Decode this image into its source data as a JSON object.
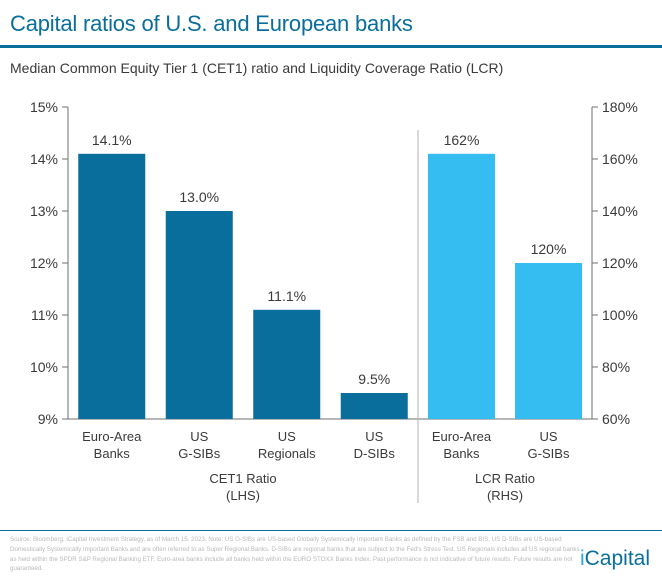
{
  "header": {
    "title": "Capital ratios of U.S. and European banks",
    "subtitle": "Median Common Equity Tier 1 (CET1) ratio and Liquidity Coverage Ratio (LCR)"
  },
  "chart_data": {
    "type": "bar",
    "left_axis": {
      "ylim": [
        9,
        15
      ],
      "ticks": [
        9,
        10,
        11,
        12,
        13,
        14,
        15
      ],
      "tick_labels": [
        "9%",
        "10%",
        "11%",
        "12%",
        "13%",
        "14%",
        "15%"
      ]
    },
    "right_axis": {
      "ylim": [
        60,
        180
      ],
      "ticks": [
        60,
        80,
        100,
        120,
        140,
        160,
        180
      ],
      "tick_labels": [
        "60%",
        "80%",
        "100%",
        "120%",
        "140%",
        "160%",
        "180%"
      ]
    },
    "groups": [
      {
        "label": [
          "CET1 Ratio",
          "(LHS)"
        ],
        "axis": "left",
        "color": "#0a6e9c",
        "bars": [
          {
            "category": [
              "Euro-Area",
              "Banks"
            ],
            "value": 14.1,
            "label": "14.1%"
          },
          {
            "category": [
              "US",
              "G-SIBs"
            ],
            "value": 13.0,
            "label": "13.0%"
          },
          {
            "category": [
              "US",
              "Regionals"
            ],
            "value": 11.1,
            "label": "11.1%"
          },
          {
            "category": [
              "US",
              "D-SIBs"
            ],
            "value": 9.5,
            "label": "9.5%"
          }
        ]
      },
      {
        "label": [
          "LCR Ratio",
          "(RHS)"
        ],
        "axis": "right",
        "color": "#35bdf2",
        "bars": [
          {
            "category": [
              "Euro-Area",
              "Banks"
            ],
            "value": 162,
            "label": "162%"
          },
          {
            "category": [
              "US",
              "G-SIBs"
            ],
            "value": 120,
            "label": "120%"
          }
        ]
      }
    ],
    "grid": false
  },
  "footer": {
    "source": "Source: Bloomberg, iCapital Investment Strategy, as of March 15, 2023. Note: US G-SIBs are US-based Globally Systemically Important Banks as defined by the FSB and BIS, US D-SIBs are US-based Domestically Systemically Important Banks and are often referred to as Super Regional Banks. D-SIBs are regional banks that are subject to the Fed's Stress Test. US Regionals includes all US regional banks as held within the SPDR S&P Regional Banking ETF. Euro-area banks include all banks held within the EURO STOXX Banks Index. Past performance is not indicative of future results. Future results are not guaranteed.",
    "brand_pre": "i",
    "brand_post": "Capital"
  }
}
